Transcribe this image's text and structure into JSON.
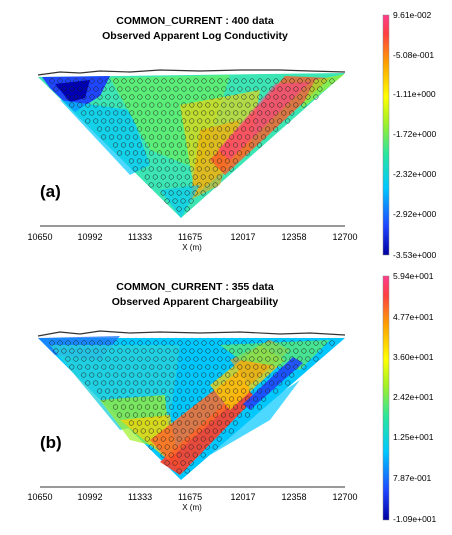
{
  "chart_data": [
    {
      "type": "heatmap",
      "panel_label": "(a)",
      "title": "COMMON_CURRENT : 400 data",
      "subtitle": "Observed Apparent Log Conductivity",
      "xlabel": "X (m)",
      "x_ticks": [
        "10650",
        "10992",
        "11333",
        "11675",
        "12017",
        "12358",
        "12700"
      ],
      "x_range": [
        10650,
        12700
      ],
      "colorbar_labels": [
        "9.61e-002",
        "-5.08e-001",
        "-1.11e+000",
        "-1.72e+000",
        "-2.32e+000",
        "-2.92e+000",
        "-3.53e+000"
      ],
      "colorbar_range": [
        -3.53,
        0.0961
      ],
      "data_count": 400
    },
    {
      "type": "heatmap",
      "panel_label": "(b)",
      "title": "COMMON_CURRENT : 355 data",
      "subtitle": "Observed Apparent Chargeability",
      "xlabel": "X (m)",
      "x_ticks": [
        "10650",
        "10992",
        "11333",
        "11675",
        "12017",
        "12358",
        "12700"
      ],
      "x_range": [
        10650,
        12700
      ],
      "colorbar_labels": [
        "5.94e+001",
        "4.77e+001",
        "3.60e+001",
        "2.42e+001",
        "1.25e+001",
        "7.87e-001",
        "-1.09e+001"
      ],
      "colorbar_range": [
        -10.9,
        59.4
      ],
      "data_count": 355
    }
  ]
}
